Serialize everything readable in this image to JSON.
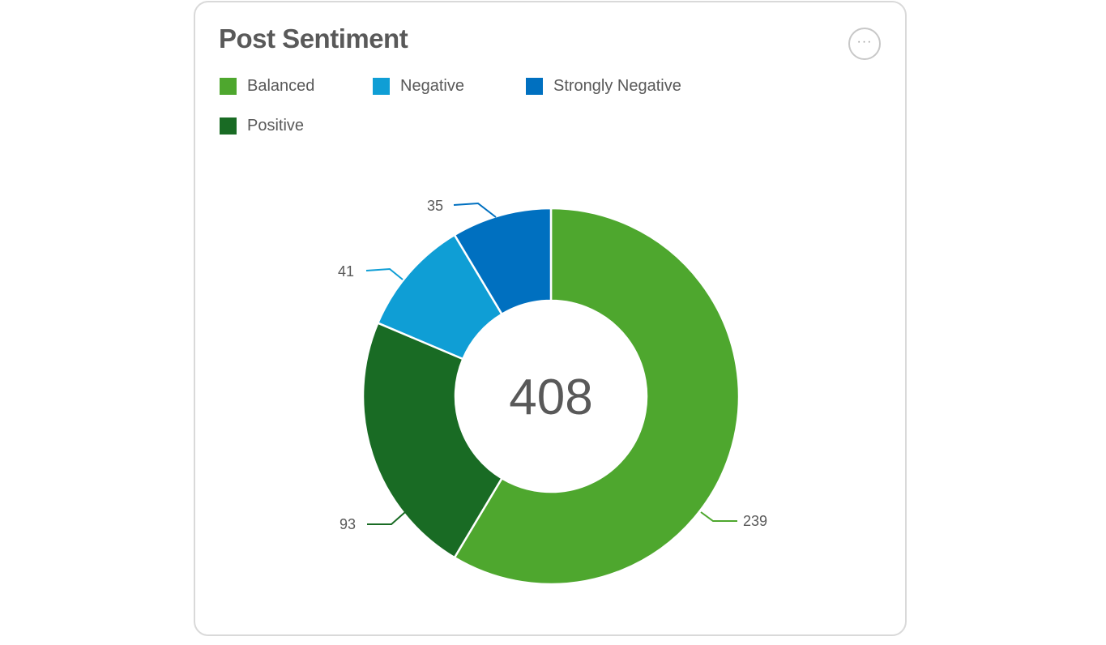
{
  "card": {
    "title": "Post Sentiment",
    "more_icon": "ellipsis-icon",
    "more_label": "···"
  },
  "chart_data": {
    "type": "pie",
    "subtype": "donut",
    "title": "Post Sentiment",
    "center_label": "408",
    "legend_position": "top",
    "categories": [
      "Balanced",
      "Positive",
      "Negative",
      "Strongly Negative"
    ],
    "values": [
      239,
      93,
      41,
      35
    ],
    "colors": [
      "#4ea72e",
      "#196b24",
      "#0f9ed5",
      "#0070c0"
    ],
    "data_labels": [
      "239",
      "93",
      "41",
      "35"
    ]
  },
  "legend": [
    {
      "label": "Balanced",
      "color": "#4ea72e"
    },
    {
      "label": "Negative",
      "color": "#0f9ed5"
    },
    {
      "label": "Strongly Negative",
      "color": "#0070c0"
    },
    {
      "label": "Positive",
      "color": "#196b24"
    }
  ]
}
